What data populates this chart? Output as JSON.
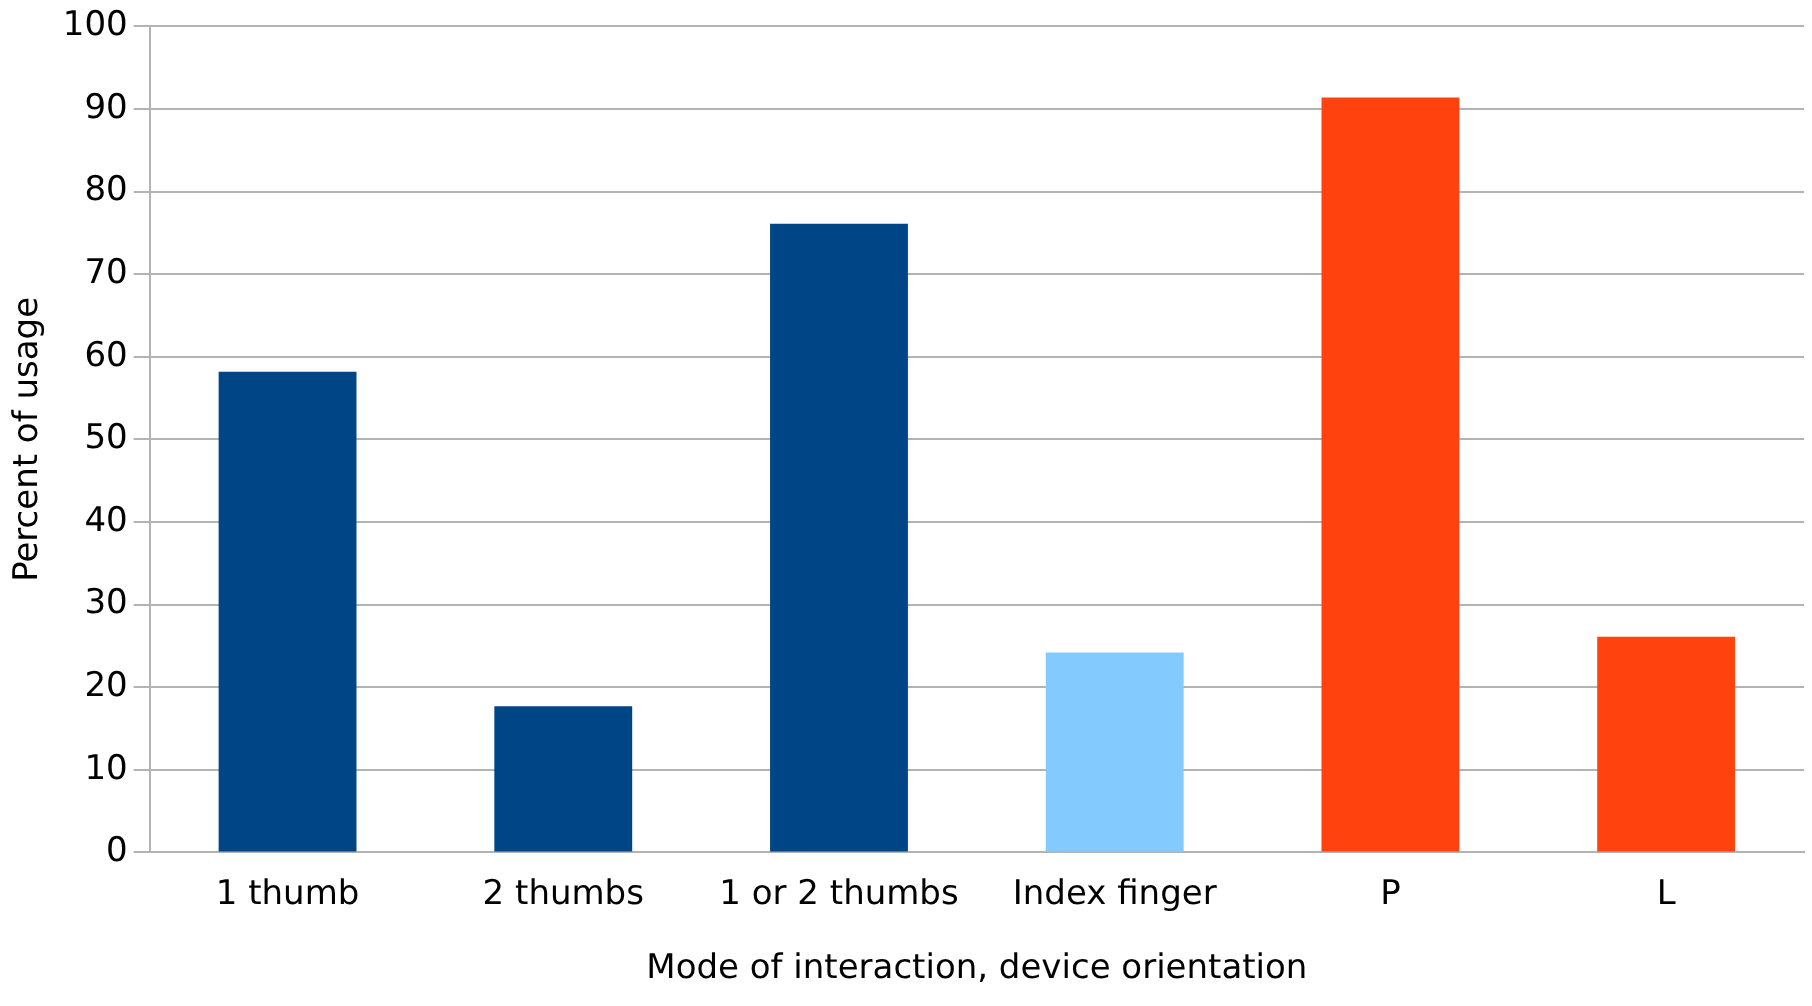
{
  "chart_data": {
    "type": "bar",
    "xlabel": "Mode of interaction, device orientation",
    "ylabel": "Percent of usage",
    "categories": [
      "1 thumb",
      "2 thumbs",
      "1 or 2 thumbs",
      "Index finger",
      "P",
      "L"
    ],
    "values": [
      58.2,
      17.7,
      76.1,
      24.2,
      91.4,
      26.1
    ],
    "colors": [
      "#004586",
      "#004586",
      "#004586",
      "#83caff",
      "#ff420e",
      "#ff420e"
    ],
    "ylim": [
      0,
      100
    ],
    "yticks": [
      0,
      10,
      20,
      30,
      40,
      50,
      60,
      70,
      80,
      90,
      100
    ],
    "grid": "y",
    "legend": false
  }
}
